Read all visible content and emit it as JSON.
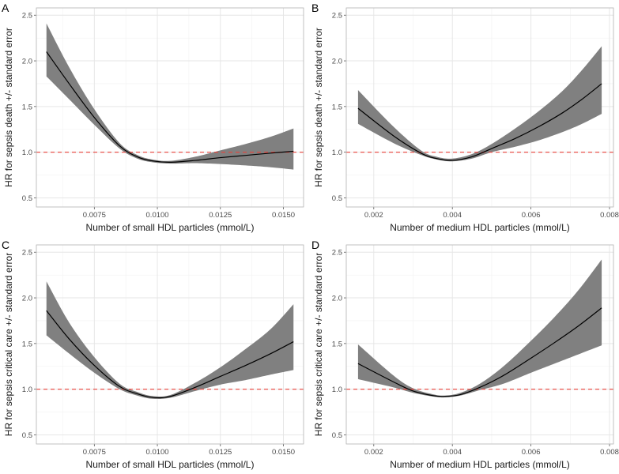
{
  "colors": {
    "band": "#808080",
    "line": "#000000",
    "reference": "#e8413a",
    "grid_major": "#e6e6e6",
    "grid_minor": "#f2f2f2",
    "frame": "#b3b3b3"
  },
  "chart_data": [
    {
      "panel": "A",
      "type": "line",
      "title": "",
      "xlabel": "Number of small HDL particles (mmol/L)",
      "ylabel": "HR for sepsis death +/- standard error",
      "xlim": [
        0.0052,
        0.0158
      ],
      "ylim": [
        0.4,
        2.58
      ],
      "xticks": [
        0.0075,
        0.01,
        0.0125,
        0.015
      ],
      "xtick_labels": [
        "0.0075",
        "0.0100",
        "0.0125",
        "0.0150"
      ],
      "yticks": [
        0.5,
        1.0,
        1.5,
        2.0,
        2.5
      ],
      "ytick_labels": [
        "0.5",
        "1.0",
        "1.5",
        "2.0",
        "2.5"
      ],
      "reference_line": 1.0,
      "grid": true,
      "series": [
        {
          "name": "HR",
          "x": [
            0.0056,
            0.0065,
            0.0075,
            0.0085,
            0.0092,
            0.0098,
            0.0105,
            0.0115,
            0.0125,
            0.0135,
            0.0145,
            0.0154
          ],
          "y": [
            2.1,
            1.75,
            1.38,
            1.07,
            0.95,
            0.905,
            0.89,
            0.91,
            0.94,
            0.965,
            0.99,
            1.01
          ],
          "lower": [
            1.83,
            1.58,
            1.3,
            1.04,
            0.93,
            0.89,
            0.875,
            0.88,
            0.87,
            0.855,
            0.835,
            0.81
          ],
          "upper": [
            2.41,
            1.93,
            1.47,
            1.1,
            0.97,
            0.92,
            0.905,
            0.95,
            1.02,
            1.09,
            1.17,
            1.26
          ]
        }
      ]
    },
    {
      "panel": "B",
      "type": "line",
      "title": "",
      "xlabel": "Number of medium HDL particles (mmol/L)",
      "ylabel": "HR for sepsis death +/- standard error",
      "xlim": [
        0.0013,
        0.0081
      ],
      "ylim": [
        0.4,
        2.58
      ],
      "xticks": [
        0.002,
        0.004,
        0.006,
        0.008
      ],
      "xtick_labels": [
        "0.002",
        "0.004",
        "0.006",
        "0.008"
      ],
      "yticks": [
        0.5,
        1.0,
        1.5,
        2.0,
        2.5
      ],
      "ytick_labels": [
        "0.5",
        "1.0",
        "1.5",
        "2.0",
        "2.5"
      ],
      "reference_line": 1.0,
      "grid": true,
      "series": [
        {
          "name": "HR",
          "x": [
            0.0016,
            0.0025,
            0.0032,
            0.0036,
            0.004,
            0.0045,
            0.005,
            0.0056,
            0.0062,
            0.0068,
            0.0073,
            0.0078
          ],
          "y": [
            1.48,
            1.18,
            0.99,
            0.93,
            0.91,
            0.95,
            1.04,
            1.15,
            1.28,
            1.43,
            1.58,
            1.75
          ],
          "lower": [
            1.31,
            1.1,
            0.97,
            0.92,
            0.9,
            0.93,
            1.0,
            1.06,
            1.13,
            1.22,
            1.31,
            1.42
          ],
          "upper": [
            1.68,
            1.28,
            1.02,
            0.95,
            0.93,
            0.98,
            1.09,
            1.26,
            1.45,
            1.67,
            1.9,
            2.16
          ]
        }
      ]
    },
    {
      "panel": "C",
      "type": "line",
      "title": "",
      "xlabel": "Number of small HDL particles (mmol/L)",
      "ylabel": "HR for sepsis critical care  +/- standard error",
      "xlim": [
        0.0052,
        0.0158
      ],
      "ylim": [
        0.4,
        2.58
      ],
      "xticks": [
        0.0075,
        0.01,
        0.0125,
        0.015
      ],
      "xtick_labels": [
        "0.0075",
        "0.0100",
        "0.0125",
        "0.0150"
      ],
      "yticks": [
        0.5,
        1.0,
        1.5,
        2.0,
        2.5
      ],
      "ytick_labels": [
        "0.5",
        "1.0",
        "1.5",
        "2.0",
        "2.5"
      ],
      "reference_line": 1.0,
      "grid": true,
      "series": [
        {
          "name": "HR",
          "x": [
            0.0056,
            0.0065,
            0.0075,
            0.0085,
            0.0092,
            0.0098,
            0.0105,
            0.0115,
            0.0125,
            0.0135,
            0.0145,
            0.0154
          ],
          "y": [
            1.86,
            1.55,
            1.26,
            1.03,
            0.95,
            0.91,
            0.92,
            1.02,
            1.14,
            1.26,
            1.39,
            1.52
          ],
          "lower": [
            1.59,
            1.39,
            1.18,
            1.0,
            0.93,
            0.895,
            0.905,
            0.98,
            1.05,
            1.1,
            1.16,
            1.21
          ],
          "upper": [
            2.18,
            1.73,
            1.35,
            1.06,
            0.97,
            0.925,
            0.935,
            1.07,
            1.24,
            1.44,
            1.66,
            1.93
          ]
        }
      ]
    },
    {
      "panel": "D",
      "type": "line",
      "title": "",
      "xlabel": "Number of medium HDL particles (mmol/L)",
      "ylabel": "HR for sepsis critical care  +/- standard error",
      "xlim": [
        0.0013,
        0.0081
      ],
      "ylim": [
        0.4,
        2.58
      ],
      "xticks": [
        0.002,
        0.004,
        0.006,
        0.008
      ],
      "xtick_labels": [
        "0.002",
        "0.004",
        "0.006",
        "0.008"
      ],
      "yticks": [
        0.5,
        1.0,
        1.5,
        2.0,
        2.5
      ],
      "ytick_labels": [
        "0.5",
        "1.0",
        "1.5",
        "2.0",
        "2.5"
      ],
      "reference_line": 1.0,
      "grid": true,
      "series": [
        {
          "name": "HR",
          "x": [
            0.0016,
            0.0025,
            0.003,
            0.0035,
            0.0038,
            0.0042,
            0.0047,
            0.0053,
            0.006,
            0.0066,
            0.0072,
            0.0078
          ],
          "y": [
            1.28,
            1.08,
            0.98,
            0.93,
            0.92,
            0.94,
            1.02,
            1.15,
            1.34,
            1.51,
            1.69,
            1.89
          ],
          "lower": [
            1.11,
            1.02,
            0.96,
            0.92,
            0.91,
            0.93,
            0.99,
            1.06,
            1.18,
            1.28,
            1.38,
            1.48
          ],
          "upper": [
            1.49,
            1.15,
            1.01,
            0.945,
            0.93,
            0.96,
            1.06,
            1.25,
            1.53,
            1.79,
            2.08,
            2.42
          ]
        }
      ]
    }
  ]
}
